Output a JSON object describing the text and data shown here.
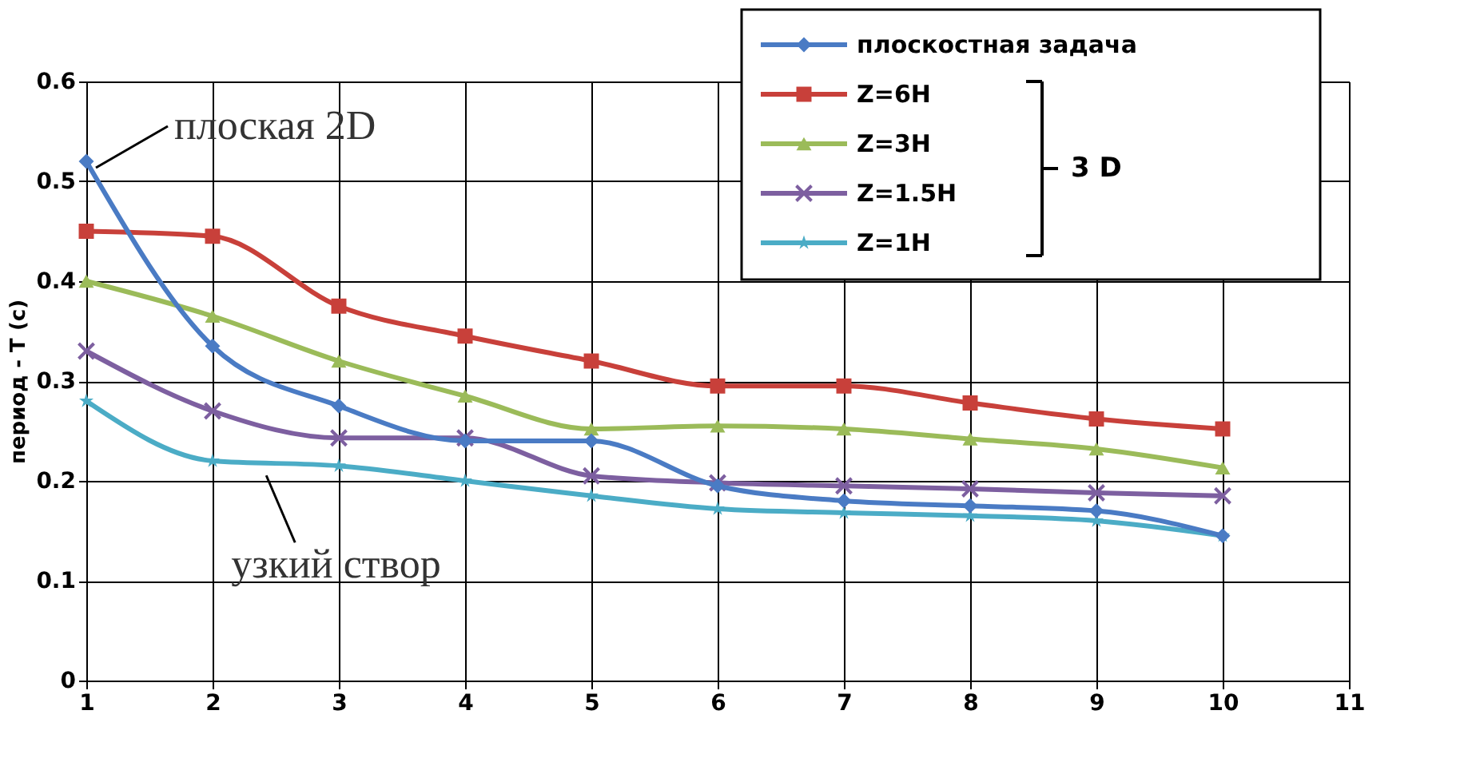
{
  "chart_data": {
    "type": "line",
    "ylabel": "период - T (c)",
    "x": [
      1,
      2,
      3,
      4,
      5,
      6,
      7,
      8,
      9,
      10
    ],
    "xlim": [
      1,
      11
    ],
    "xticks": [
      1,
      2,
      3,
      4,
      5,
      6,
      7,
      8,
      9,
      10,
      11
    ],
    "ylim": [
      0,
      0.6
    ],
    "yticks": [
      0,
      0.1,
      0.2,
      0.3,
      0.4,
      0.5,
      0.6
    ],
    "grid": true,
    "legend": "top right",
    "line_style": "solid",
    "series": [
      {
        "name": "плоскостная задача",
        "color": "#4a7bc4",
        "marker": "diamond",
        "values": [
          0.52,
          0.335,
          0.275,
          0.24,
          0.24,
          0.195,
          0.18,
          0.175,
          0.17,
          0.145
        ]
      },
      {
        "name": "Z=6H",
        "color": "#c8403a",
        "marker": "square",
        "values": [
          0.45,
          0.445,
          0.375,
          0.345,
          0.32,
          0.295,
          0.295,
          0.278,
          0.262,
          0.252
        ]
      },
      {
        "name": "Z=3H",
        "color": "#9bbb59",
        "marker": "triangle",
        "values": [
          0.4,
          0.365,
          0.32,
          0.285,
          0.252,
          0.255,
          0.252,
          0.242,
          0.232,
          0.213
        ]
      },
      {
        "name": "Z=1.5H",
        "color": "#7d5fa0",
        "marker": "cross",
        "values": [
          0.33,
          0.27,
          0.243,
          0.243,
          0.205,
          0.198,
          0.195,
          0.192,
          0.188,
          0.185
        ]
      },
      {
        "name": "Z=1H",
        "color": "#4bacc6",
        "marker": "star",
        "values": [
          0.28,
          0.22,
          0.215,
          0.2,
          0.185,
          0.172,
          0.168,
          0.165,
          0.16,
          0.145
        ]
      }
    ],
    "annotations": [
      {
        "text": "плоская 2D",
        "x": 1,
        "y": 0.52
      },
      {
        "text": "узкий створ",
        "x": 2.4,
        "y": 0.215
      },
      "3 D"
    ]
  }
}
